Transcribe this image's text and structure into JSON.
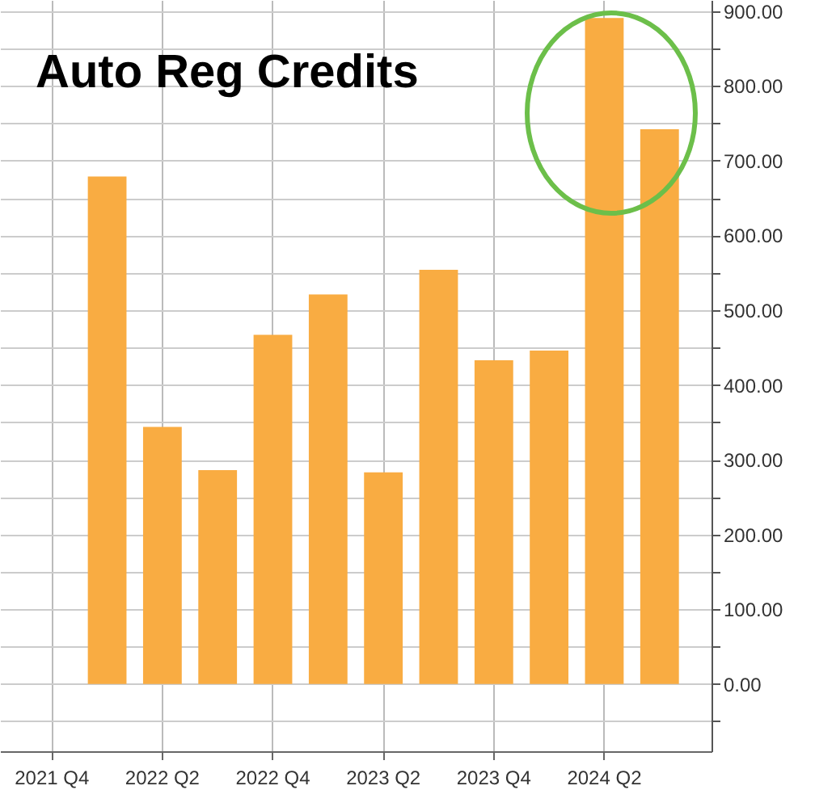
{
  "chart_data": {
    "type": "bar",
    "title": "Auto Reg Credits",
    "categories": [
      "2021 Q4",
      null,
      "2022 Q2",
      null,
      "2022 Q4",
      null,
      "2023 Q2",
      null,
      "2023 Q4",
      null,
      "2024 Q2",
      null
    ],
    "values": [
      null,
      679,
      344,
      286,
      467,
      521,
      283,
      554,
      433,
      446,
      891,
      742
    ],
    "color": "#f9ac42",
    "ylim": [
      -90,
      915
    ],
    "yticks": [
      {
        "value": -50,
        "label": null
      },
      {
        "value": 0,
        "label": "0.00"
      },
      {
        "value": 50,
        "label": null
      },
      {
        "value": 100,
        "label": "100.00"
      },
      {
        "value": 150,
        "label": null
      },
      {
        "value": 200,
        "label": "200.00"
      },
      {
        "value": 250,
        "label": null
      },
      {
        "value": 300,
        "label": "300.00"
      },
      {
        "value": 350,
        "label": null
      },
      {
        "value": 400,
        "label": "400.00"
      },
      {
        "value": 450,
        "label": null
      },
      {
        "value": 500,
        "label": "500.00"
      },
      {
        "value": 550,
        "label": null
      },
      {
        "value": 600,
        "label": "600.00"
      },
      {
        "value": 650,
        "label": null
      },
      {
        "value": 700,
        "label": "700.00"
      },
      {
        "value": 750,
        "label": null
      },
      {
        "value": 800,
        "label": "800.00"
      },
      {
        "value": 850,
        "label": null
      },
      {
        "value": 900,
        "label": "900.00"
      }
    ],
    "grid": true
  }
}
